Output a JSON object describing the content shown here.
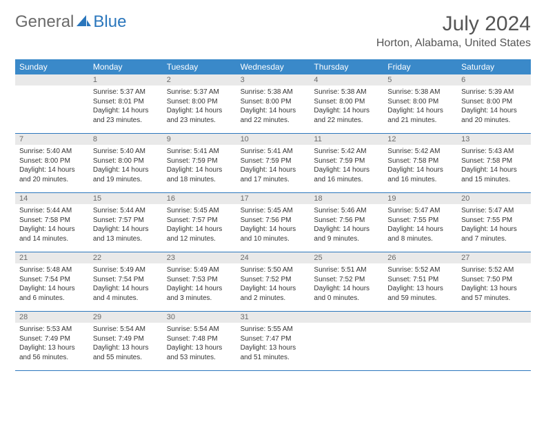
{
  "logo": {
    "general": "General",
    "blue": "Blue"
  },
  "title": "July 2024",
  "location": "Horton, Alabama, United States",
  "colors": {
    "header_bg": "#3a89c9",
    "border": "#2a76bc",
    "daynum_bg": "#e9e9e9",
    "text": "#333333",
    "muted": "#555555"
  },
  "weekdays": [
    "Sunday",
    "Monday",
    "Tuesday",
    "Wednesday",
    "Thursday",
    "Friday",
    "Saturday"
  ],
  "start_offset": 1,
  "days": [
    {
      "n": 1,
      "sr": "5:37 AM",
      "ss": "8:01 PM",
      "dl": "14 hours and 23 minutes."
    },
    {
      "n": 2,
      "sr": "5:37 AM",
      "ss": "8:00 PM",
      "dl": "14 hours and 23 minutes."
    },
    {
      "n": 3,
      "sr": "5:38 AM",
      "ss": "8:00 PM",
      "dl": "14 hours and 22 minutes."
    },
    {
      "n": 4,
      "sr": "5:38 AM",
      "ss": "8:00 PM",
      "dl": "14 hours and 22 minutes."
    },
    {
      "n": 5,
      "sr": "5:38 AM",
      "ss": "8:00 PM",
      "dl": "14 hours and 21 minutes."
    },
    {
      "n": 6,
      "sr": "5:39 AM",
      "ss": "8:00 PM",
      "dl": "14 hours and 20 minutes."
    },
    {
      "n": 7,
      "sr": "5:40 AM",
      "ss": "8:00 PM",
      "dl": "14 hours and 20 minutes."
    },
    {
      "n": 8,
      "sr": "5:40 AM",
      "ss": "8:00 PM",
      "dl": "14 hours and 19 minutes."
    },
    {
      "n": 9,
      "sr": "5:41 AM",
      "ss": "7:59 PM",
      "dl": "14 hours and 18 minutes."
    },
    {
      "n": 10,
      "sr": "5:41 AM",
      "ss": "7:59 PM",
      "dl": "14 hours and 17 minutes."
    },
    {
      "n": 11,
      "sr": "5:42 AM",
      "ss": "7:59 PM",
      "dl": "14 hours and 16 minutes."
    },
    {
      "n": 12,
      "sr": "5:42 AM",
      "ss": "7:58 PM",
      "dl": "14 hours and 16 minutes."
    },
    {
      "n": 13,
      "sr": "5:43 AM",
      "ss": "7:58 PM",
      "dl": "14 hours and 15 minutes."
    },
    {
      "n": 14,
      "sr": "5:44 AM",
      "ss": "7:58 PM",
      "dl": "14 hours and 14 minutes."
    },
    {
      "n": 15,
      "sr": "5:44 AM",
      "ss": "7:57 PM",
      "dl": "14 hours and 13 minutes."
    },
    {
      "n": 16,
      "sr": "5:45 AM",
      "ss": "7:57 PM",
      "dl": "14 hours and 12 minutes."
    },
    {
      "n": 17,
      "sr": "5:45 AM",
      "ss": "7:56 PM",
      "dl": "14 hours and 10 minutes."
    },
    {
      "n": 18,
      "sr": "5:46 AM",
      "ss": "7:56 PM",
      "dl": "14 hours and 9 minutes."
    },
    {
      "n": 19,
      "sr": "5:47 AM",
      "ss": "7:55 PM",
      "dl": "14 hours and 8 minutes."
    },
    {
      "n": 20,
      "sr": "5:47 AM",
      "ss": "7:55 PM",
      "dl": "14 hours and 7 minutes."
    },
    {
      "n": 21,
      "sr": "5:48 AM",
      "ss": "7:54 PM",
      "dl": "14 hours and 6 minutes."
    },
    {
      "n": 22,
      "sr": "5:49 AM",
      "ss": "7:54 PM",
      "dl": "14 hours and 4 minutes."
    },
    {
      "n": 23,
      "sr": "5:49 AM",
      "ss": "7:53 PM",
      "dl": "14 hours and 3 minutes."
    },
    {
      "n": 24,
      "sr": "5:50 AM",
      "ss": "7:52 PM",
      "dl": "14 hours and 2 minutes."
    },
    {
      "n": 25,
      "sr": "5:51 AM",
      "ss": "7:52 PM",
      "dl": "14 hours and 0 minutes."
    },
    {
      "n": 26,
      "sr": "5:52 AM",
      "ss": "7:51 PM",
      "dl": "13 hours and 59 minutes."
    },
    {
      "n": 27,
      "sr": "5:52 AM",
      "ss": "7:50 PM",
      "dl": "13 hours and 57 minutes."
    },
    {
      "n": 28,
      "sr": "5:53 AM",
      "ss": "7:49 PM",
      "dl": "13 hours and 56 minutes."
    },
    {
      "n": 29,
      "sr": "5:54 AM",
      "ss": "7:49 PM",
      "dl": "13 hours and 55 minutes."
    },
    {
      "n": 30,
      "sr": "5:54 AM",
      "ss": "7:48 PM",
      "dl": "13 hours and 53 minutes."
    },
    {
      "n": 31,
      "sr": "5:55 AM",
      "ss": "7:47 PM",
      "dl": "13 hours and 51 minutes."
    }
  ],
  "labels": {
    "sunrise": "Sunrise:",
    "sunset": "Sunset:",
    "daylight": "Daylight:"
  }
}
